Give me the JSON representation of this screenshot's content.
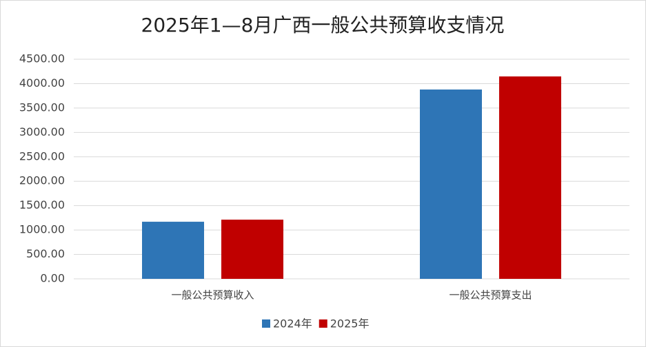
{
  "chart_data": {
    "type": "bar",
    "title": "2025年1—8月广西一般公共预算收支情况",
    "categories": [
      "一般公共预算收入",
      "一般公共预算支出"
    ],
    "series": [
      {
        "name": "2024年",
        "color": "#2e75b6",
        "values": [
          1170,
          3879
        ]
      },
      {
        "name": "2025年",
        "color": "#c00000",
        "values": [
          1213,
          4147
        ]
      }
    ],
    "ylim": [
      0,
      4500
    ],
    "yticks": [
      {
        "value": 0,
        "label": "0.00"
      },
      {
        "value": 500,
        "label": "500.00"
      },
      {
        "value": 1000,
        "label": "1000.00"
      },
      {
        "value": 1500,
        "label": "1500.00"
      },
      {
        "value": 2000,
        "label": "2000.00"
      },
      {
        "value": 2500,
        "label": "2500.00"
      },
      {
        "value": 3000,
        "label": "3000.00"
      },
      {
        "value": 3500,
        "label": "3500.00"
      },
      {
        "value": 4000,
        "label": "4000.00"
      },
      {
        "value": 4500,
        "label": "4500.00"
      }
    ],
    "grid": true,
    "legend": "bottom"
  }
}
